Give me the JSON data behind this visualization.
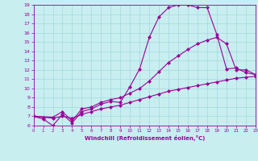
{
  "xlabel": "Windchill (Refroidissement éolien,°C)",
  "bg_color": "#c8eef0",
  "grid_color": "#a8dce0",
  "line_color": "#990099",
  "xmin": 0,
  "xmax": 23,
  "ymin": 6,
  "ymax": 19,
  "yticks": [
    6,
    7,
    8,
    9,
    10,
    11,
    12,
    13,
    14,
    15,
    16,
    17,
    18,
    19
  ],
  "xticks": [
    0,
    1,
    2,
    3,
    4,
    5,
    6,
    7,
    8,
    9,
    10,
    11,
    12,
    13,
    14,
    15,
    16,
    17,
    18,
    19,
    20,
    21,
    22,
    23
  ],
  "line1_x": [
    0,
    1,
    2,
    3,
    4,
    5,
    6,
    7,
    8,
    9,
    10,
    11,
    12,
    13,
    14,
    15,
    16,
    17,
    18,
    19,
    20,
    21,
    22,
    23
  ],
  "line1_y": [
    7.0,
    6.7,
    6.0,
    7.2,
    6.3,
    7.5,
    7.8,
    8.3,
    8.6,
    8.5,
    10.2,
    12.1,
    15.5,
    17.7,
    18.7,
    19.0,
    19.0,
    18.7,
    18.7,
    15.8,
    12.1,
    12.2,
    11.7,
    11.5
  ],
  "line2_x": [
    0,
    2,
    3,
    4,
    5,
    6,
    7,
    8,
    9,
    10,
    11,
    12,
    13,
    14,
    15,
    16,
    17,
    18,
    19,
    20,
    21,
    22,
    23
  ],
  "line2_y": [
    7.0,
    6.9,
    7.5,
    6.5,
    7.8,
    8.0,
    8.5,
    8.8,
    9.0,
    9.5,
    10.0,
    10.8,
    11.8,
    12.8,
    13.5,
    14.2,
    14.8,
    15.2,
    15.5,
    14.8,
    12.0,
    12.0,
    11.5
  ],
  "line3_x": [
    0,
    1,
    2,
    3,
    4,
    5,
    6,
    7,
    8,
    9,
    10,
    11,
    12,
    13,
    14,
    15,
    16,
    17,
    18,
    19,
    20,
    21,
    22,
    23
  ],
  "line3_y": [
    7.0,
    6.9,
    6.8,
    7.0,
    6.8,
    7.2,
    7.5,
    7.8,
    8.0,
    8.2,
    8.5,
    8.8,
    9.1,
    9.4,
    9.7,
    9.9,
    10.1,
    10.3,
    10.5,
    10.7,
    10.9,
    11.1,
    11.2,
    11.3
  ],
  "markersize": 2.5
}
